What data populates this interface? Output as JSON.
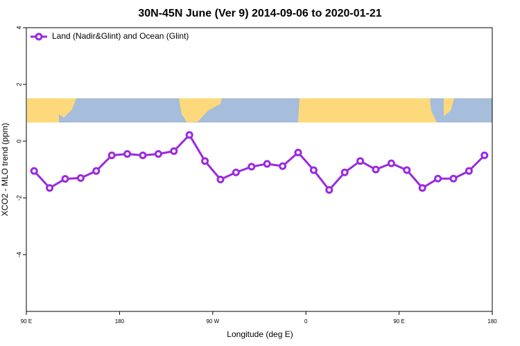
{
  "chart_data": {
    "type": "line",
    "title": "30N-45N June (Ver 9)   2014-09-06 to 2020-01-21",
    "xlabel": "Longitude (deg E)",
    "ylabel": "XCO2 - MLO trend (ppm)",
    "x": [
      97.5,
      112.5,
      127.5,
      142.5,
      157.5,
      172.5,
      187.5,
      202.5,
      217.5,
      232.5,
      247.5,
      262.5,
      277.5,
      292.5,
      307.5,
      322.5,
      337.5,
      352.5,
      367.5,
      382.5,
      397.5,
      412.5,
      427.5,
      442.5,
      457.5,
      472.5,
      487.5,
      502.5,
      517.5,
      532.5
    ],
    "series": [
      {
        "name": "Land (Nadir&Glint) and Ocean (Glint)",
        "color": "#9a28e0",
        "values": [
          -1.05,
          -1.65,
          -1.33,
          -1.3,
          -1.05,
          -0.5,
          -0.45,
          -0.5,
          -0.45,
          -0.35,
          0.22,
          -0.7,
          -1.35,
          -1.1,
          -0.9,
          -0.8,
          -0.88,
          -0.4,
          -1.02,
          -1.72,
          -1.1,
          -0.7,
          -1.0,
          -0.78,
          -1.02,
          -1.65,
          -1.32,
          -1.32,
          -1.05,
          -0.5
        ]
      }
    ],
    "xlim": [
      90,
      540
    ],
    "xticks": [
      {
        "value": 90,
        "label": "90 E"
      },
      {
        "value": 180,
        "label": "180"
      },
      {
        "value": 270,
        "label": "90 W"
      },
      {
        "value": 360,
        "label": "0"
      },
      {
        "value": 450,
        "label": "90 E"
      },
      {
        "value": 540,
        "label": "180"
      }
    ],
    "ylim": [
      -6,
      4
    ],
    "yticks": [
      -4,
      -2,
      0,
      2,
      4
    ],
    "legend": "top-left"
  }
}
